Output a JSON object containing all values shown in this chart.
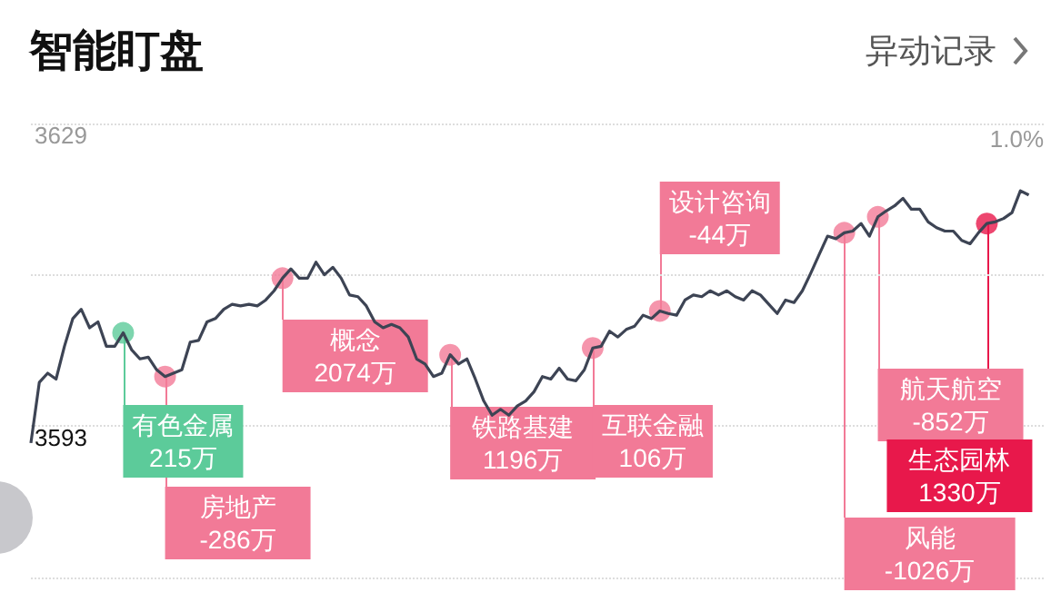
{
  "chart_data": {
    "type": "line",
    "title": "智能盯盘",
    "subtitle": "异动记录",
    "categories": [
      null,
      null,
      null,
      null,
      null,
      null,
      null,
      null,
      null,
      null,
      null,
      null,
      null,
      null,
      null,
      null,
      null,
      null,
      null,
      null,
      null,
      null,
      null,
      null,
      null,
      null,
      null,
      null,
      null,
      null,
      null,
      null,
      null,
      null,
      null,
      null,
      null,
      null,
      null,
      null,
      null,
      null,
      null,
      null,
      null,
      null,
      null,
      null,
      null,
      null,
      null,
      null,
      null,
      null,
      null,
      null,
      null,
      null,
      null,
      null,
      null,
      null,
      null,
      null,
      null,
      null,
      null,
      null,
      null,
      null,
      null,
      null,
      null,
      null,
      null,
      null,
      null,
      null,
      null,
      null,
      null,
      null,
      null,
      null,
      null,
      null,
      null,
      null,
      null,
      null,
      null,
      null,
      null,
      null,
      null,
      null,
      null,
      null,
      null,
      null,
      null,
      null,
      null,
      null,
      null,
      null,
      null,
      null,
      null,
      null,
      null,
      null,
      null,
      null,
      null,
      null,
      null,
      null,
      null,
      null,
      null,
      null
    ],
    "series": [
      {
        "color": "#3d4454",
        "marker": "none",
        "values": [
          3591.0,
          3598.2,
          3599.3,
          3598.6,
          3602.5,
          3605.8,
          3606.9,
          3604.7,
          3605.4,
          3602.5,
          3602.5,
          3604.1,
          3602.1,
          3601.0,
          3601.2,
          3599.7,
          3598.9,
          3599.3,
          3599.7,
          3603.0,
          3603.2,
          3605.4,
          3605.8,
          3606.9,
          3607.5,
          3607.3,
          3607.5,
          3607.3,
          3608.0,
          3609.1,
          3610.6,
          3611.7,
          3610.6,
          3610.6,
          3612.5,
          3611.0,
          3611.9,
          3610.6,
          3608.6,
          3608.4,
          3607.3,
          3605.4,
          3604.7,
          3605.1,
          3604.7,
          3603.6,
          3601.0,
          3600.4,
          3598.9,
          3599.3,
          3601.5,
          3600.4,
          3601.0,
          3598.6,
          3596.0,
          3594.3,
          3595.0,
          3594.3,
          3595.4,
          3596.0,
          3597.1,
          3598.9,
          3598.6,
          3599.9,
          3598.6,
          3598.4,
          3599.7,
          3602.3,
          3602.5,
          3604.3,
          3603.6,
          3604.5,
          3604.9,
          3606.2,
          3605.8,
          3606.7,
          3606.4,
          3606.2,
          3608.0,
          3608.6,
          3608.4,
          3609.1,
          3608.6,
          3609.1,
          3608.4,
          3608.0,
          3609.1,
          3608.6,
          3607.5,
          3606.4,
          3608.0,
          3607.7,
          3609.1,
          3611.2,
          3613.4,
          3615.6,
          3615.3,
          3616.0,
          3616.2,
          3617.1,
          3615.6,
          3617.9,
          3618.6,
          3619.2,
          3620.1,
          3618.8,
          3618.8,
          3617.3,
          3616.6,
          3616.2,
          3616.2,
          3615.1,
          3614.7,
          3616.0,
          3617.1,
          3617.3,
          3617.7,
          3618.4,
          3621.0,
          3620.5,
          null,
          null
        ]
      },
      {
        "type": "scatter",
        "marker": "circle",
        "colors": [
          null,
          null,
          null,
          null,
          null,
          null,
          null,
          null,
          null,
          null,
          null,
          "#5ccb9a",
          null,
          null,
          null,
          null,
          "#f27a97",
          null,
          null,
          null,
          null,
          null,
          null,
          null,
          null,
          null,
          null,
          null,
          null,
          null,
          "#f27a97",
          null,
          null,
          null,
          null,
          null,
          null,
          null,
          null,
          null,
          null,
          null,
          null,
          null,
          null,
          null,
          null,
          null,
          null,
          null,
          "#f27a97",
          null,
          null,
          null,
          null,
          null,
          null,
          null,
          null,
          null,
          null,
          null,
          null,
          null,
          null,
          null,
          null,
          "#f27a97",
          null,
          null,
          null,
          null,
          null,
          null,
          null,
          "#f27a97",
          null,
          null,
          null,
          null,
          null,
          null,
          null,
          null,
          null,
          null,
          null,
          null,
          null,
          null,
          null,
          null,
          null,
          null,
          null,
          null,
          null,
          "#f27a97",
          null,
          null,
          null,
          "#f27a97",
          null,
          null,
          null,
          null,
          null,
          null,
          null,
          null,
          null,
          null,
          null,
          null,
          "#e8184b",
          null,
          null,
          null,
          null,
          null,
          null,
          null
        ],
        "values": [
          null,
          null,
          null,
          null,
          null,
          null,
          null,
          null,
          null,
          null,
          null,
          3604.1,
          null,
          null,
          null,
          null,
          3598.9,
          null,
          null,
          null,
          null,
          null,
          null,
          null,
          null,
          null,
          null,
          null,
          null,
          null,
          3610.6,
          null,
          null,
          null,
          null,
          null,
          null,
          null,
          null,
          null,
          null,
          null,
          null,
          null,
          null,
          null,
          null,
          null,
          null,
          null,
          3601.5,
          null,
          null,
          null,
          null,
          null,
          null,
          null,
          null,
          null,
          null,
          null,
          null,
          null,
          null,
          null,
          null,
          3602.3,
          null,
          null,
          null,
          null,
          null,
          null,
          null,
          3606.7,
          null,
          null,
          null,
          null,
          null,
          null,
          null,
          null,
          null,
          null,
          null,
          null,
          null,
          null,
          null,
          null,
          null,
          null,
          null,
          null,
          null,
          3616.0,
          null,
          null,
          null,
          3617.9,
          null,
          null,
          null,
          null,
          null,
          null,
          null,
          null,
          null,
          null,
          null,
          null,
          3617.1,
          null,
          null,
          null,
          null,
          null,
          null,
          null
        ]
      }
    ],
    "annotations": [
      "有色金属\n215万",
      "房地产\n-286万",
      "概念\n2074万",
      "铁路基建\n1196万",
      "互联金融\n106万",
      "设计咨询\n-44万",
      "风能\n-1026万",
      "航天航空\n-852万",
      "生态园林\n1330万",
      "1.0%"
    ],
    "ylim": [
      3575,
      3629
    ],
    "yticks": [
      3629,
      {
        "value": 3611,
        "label": null
      },
      3593,
      {
        "value": 3575,
        "label": null
      }
    ],
    "grid": "y"
  }
}
